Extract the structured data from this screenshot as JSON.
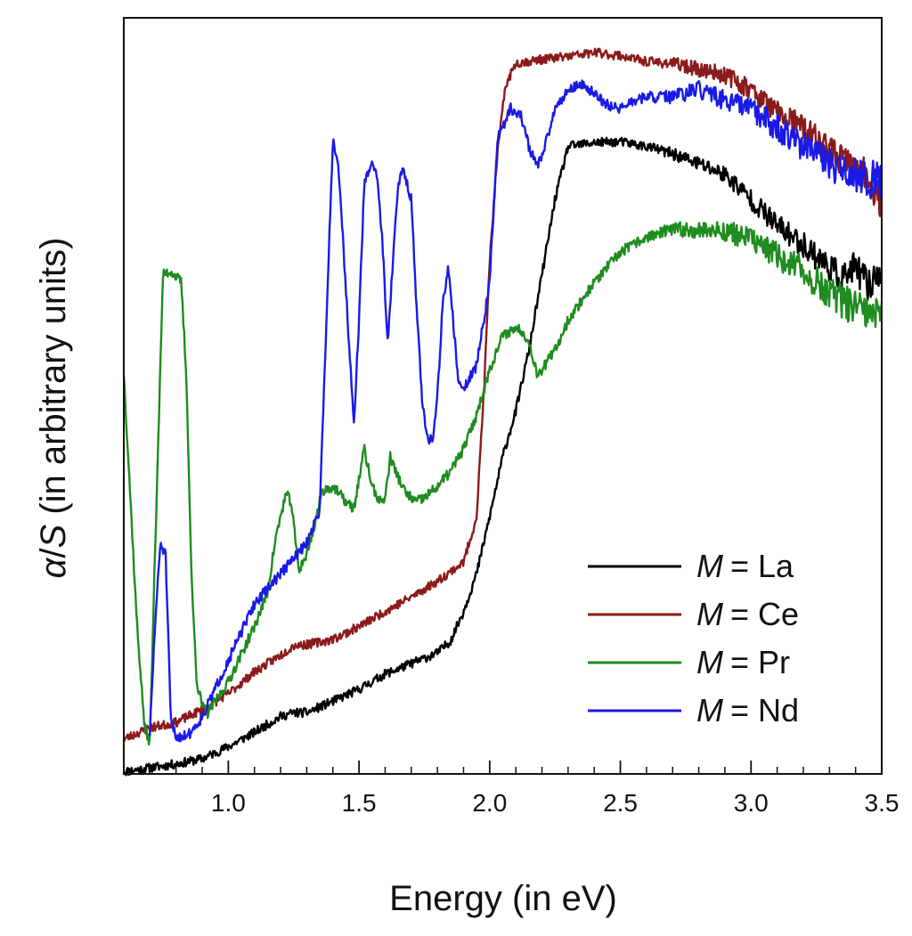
{
  "chart_data": {
    "type": "line",
    "title": "",
    "xlabel": "Energy (in eV)",
    "ylabel": {
      "alpha": "α",
      "slash": "/",
      "S": "S",
      "rest": " (in arbitrary units)"
    },
    "xlim": [
      0.6,
      3.5
    ],
    "ylim": [
      0,
      100
    ],
    "x_ticks": [
      1.0,
      1.5,
      2.0,
      2.5,
      3.0,
      3.5
    ],
    "x_tick_labels": [
      "1.0",
      "1.5",
      "2.0",
      "2.5",
      "3.0",
      "3.5"
    ],
    "x_minor_step": 0.1,
    "y_tick_labels": false,
    "grid": false,
    "legend_position": "lower-right",
    "legend_prefix": "M",
    "series": [
      {
        "name": "La",
        "label": "= La",
        "color": "#000000",
        "noise": 0.6,
        "seed": 11,
        "points": [
          [
            0.6,
            0.3
          ],
          [
            0.7,
            0.8
          ],
          [
            0.8,
            1.3
          ],
          [
            0.9,
            2
          ],
          [
            1.0,
            3.6
          ],
          [
            1.1,
            5.5
          ],
          [
            1.2,
            7.6
          ],
          [
            1.25,
            8.1
          ],
          [
            1.3,
            8.1
          ],
          [
            1.4,
            9.6
          ],
          [
            1.5,
            11.2
          ],
          [
            1.6,
            13.2
          ],
          [
            1.7,
            14.6
          ],
          [
            1.8,
            16
          ],
          [
            1.85,
            17.6
          ],
          [
            1.9,
            21.5
          ],
          [
            1.95,
            26.5
          ],
          [
            2.0,
            34
          ],
          [
            2.05,
            42
          ],
          [
            2.1,
            48
          ],
          [
            2.15,
            56
          ],
          [
            2.2,
            66
          ],
          [
            2.25,
            76
          ],
          [
            2.3,
            83
          ],
          [
            2.4,
            83.5
          ],
          [
            2.5,
            83.6
          ],
          [
            2.6,
            83
          ],
          [
            2.7,
            82
          ],
          [
            2.8,
            80.7
          ],
          [
            2.9,
            79.3
          ],
          [
            3.0,
            76
          ],
          [
            3.1,
            72.5
          ],
          [
            3.2,
            70
          ],
          [
            3.3,
            67
          ],
          [
            3.35,
            65.5
          ],
          [
            3.4,
            67
          ],
          [
            3.45,
            64.5
          ],
          [
            3.5,
            67
          ]
        ]
      },
      {
        "name": "Ce",
        "label": "= Ce",
        "color": "#8B1A1A",
        "noise": 0.6,
        "seed": 23,
        "points": [
          [
            0.6,
            4.6
          ],
          [
            0.7,
            6.1
          ],
          [
            0.8,
            6.8
          ],
          [
            0.9,
            8.5
          ],
          [
            1.0,
            10.6
          ],
          [
            1.1,
            13.5
          ],
          [
            1.2,
            15.7
          ],
          [
            1.25,
            17
          ],
          [
            1.3,
            17.1
          ],
          [
            1.4,
            17.8
          ],
          [
            1.5,
            19.5
          ],
          [
            1.6,
            21.5
          ],
          [
            1.7,
            23.4
          ],
          [
            1.8,
            25.5
          ],
          [
            1.9,
            28
          ],
          [
            1.95,
            34
          ],
          [
            1.98,
            52
          ],
          [
            2.0,
            68
          ],
          [
            2.03,
            82
          ],
          [
            2.06,
            91
          ],
          [
            2.1,
            94
          ],
          [
            2.2,
            94.5
          ],
          [
            2.3,
            94.9
          ],
          [
            2.4,
            95.4
          ],
          [
            2.5,
            95
          ],
          [
            2.6,
            94.2
          ],
          [
            2.7,
            94
          ],
          [
            2.8,
            93.2
          ],
          [
            2.9,
            92.5
          ],
          [
            3.0,
            90.5
          ],
          [
            3.1,
            87.5
          ],
          [
            3.2,
            85.5
          ],
          [
            3.3,
            82.5
          ],
          [
            3.4,
            80
          ],
          [
            3.45,
            79
          ],
          [
            3.5,
            75
          ]
        ]
      },
      {
        "name": "Pr",
        "label": "= Pr",
        "color": "#1E8C1E",
        "noise": 0.7,
        "seed": 37,
        "points": [
          [
            0.6,
            53
          ],
          [
            0.62,
            40
          ],
          [
            0.65,
            20
          ],
          [
            0.68,
            6
          ],
          [
            0.7,
            4.2
          ],
          [
            0.72,
            30
          ],
          [
            0.75,
            66
          ],
          [
            0.78,
            66.5
          ],
          [
            0.82,
            65
          ],
          [
            0.84,
            52
          ],
          [
            0.86,
            25
          ],
          [
            0.88,
            12
          ],
          [
            0.9,
            9
          ],
          [
            0.92,
            8
          ],
          [
            1.0,
            12.2
          ],
          [
            1.1,
            19.5
          ],
          [
            1.15,
            24
          ],
          [
            1.18,
            31
          ],
          [
            1.22,
            37
          ],
          [
            1.24,
            36
          ],
          [
            1.27,
            27
          ],
          [
            1.3,
            29
          ],
          [
            1.33,
            33
          ],
          [
            1.36,
            37.5
          ],
          [
            1.4,
            38
          ],
          [
            1.45,
            36
          ],
          [
            1.48,
            35
          ],
          [
            1.5,
            39
          ],
          [
            1.52,
            43
          ],
          [
            1.55,
            38
          ],
          [
            1.58,
            36
          ],
          [
            1.6,
            36.5
          ],
          [
            1.62,
            42
          ],
          [
            1.64,
            40
          ],
          [
            1.68,
            37
          ],
          [
            1.72,
            36
          ],
          [
            1.75,
            36.5
          ],
          [
            1.8,
            38
          ],
          [
            1.85,
            40
          ],
          [
            1.9,
            43
          ],
          [
            1.95,
            47.5
          ],
          [
            2.0,
            53.5
          ],
          [
            2.05,
            58
          ],
          [
            2.1,
            59
          ],
          [
            2.13,
            58.5
          ],
          [
            2.16,
            56
          ],
          [
            2.18,
            53
          ],
          [
            2.2,
            53.5
          ],
          [
            2.25,
            56
          ],
          [
            2.3,
            60
          ],
          [
            2.4,
            65
          ],
          [
            2.5,
            69
          ],
          [
            2.6,
            71
          ],
          [
            2.7,
            72
          ],
          [
            2.8,
            72
          ],
          [
            2.9,
            71.8
          ],
          [
            3.0,
            70.8
          ],
          [
            3.1,
            68.5
          ],
          [
            3.2,
            66.5
          ],
          [
            3.3,
            63.5
          ],
          [
            3.4,
            61.5
          ],
          [
            3.5,
            60
          ]
        ]
      },
      {
        "name": "Nd",
        "label": "= Nd",
        "color": "#1A1AE6",
        "noise": 0.7,
        "seed": 51,
        "points": [
          [
            0.7,
            5.5
          ],
          [
            0.72,
            20
          ],
          [
            0.74,
            30.5
          ],
          [
            0.76,
            29
          ],
          [
            0.77,
            18
          ],
          [
            0.78,
            7
          ],
          [
            0.8,
            4.8
          ],
          [
            0.85,
            5.3
          ],
          [
            0.9,
            7.5
          ],
          [
            1.0,
            15
          ],
          [
            1.1,
            22.5
          ],
          [
            1.2,
            26.5
          ],
          [
            1.3,
            30.5
          ],
          [
            1.35,
            35
          ],
          [
            1.37,
            55
          ],
          [
            1.4,
            84
          ],
          [
            1.42,
            81
          ],
          [
            1.44,
            70
          ],
          [
            1.46,
            58
          ],
          [
            1.48,
            46
          ],
          [
            1.5,
            60
          ],
          [
            1.52,
            78
          ],
          [
            1.55,
            81
          ],
          [
            1.57,
            79
          ],
          [
            1.59,
            70
          ],
          [
            1.61,
            57
          ],
          [
            1.63,
            68
          ],
          [
            1.65,
            78
          ],
          [
            1.67,
            80
          ],
          [
            1.7,
            76
          ],
          [
            1.72,
            62
          ],
          [
            1.74,
            50
          ],
          [
            1.76,
            44.5
          ],
          [
            1.78,
            44
          ],
          [
            1.8,
            50
          ],
          [
            1.82,
            62
          ],
          [
            1.84,
            67
          ],
          [
            1.86,
            60
          ],
          [
            1.88,
            52
          ],
          [
            1.9,
            51
          ],
          [
            1.95,
            54
          ],
          [
            2.0,
            65
          ],
          [
            2.03,
            84
          ],
          [
            2.08,
            88
          ],
          [
            2.12,
            87
          ],
          [
            2.15,
            83
          ],
          [
            2.18,
            80.5
          ],
          [
            2.2,
            81.5
          ],
          [
            2.25,
            88
          ],
          [
            2.3,
            90.5
          ],
          [
            2.35,
            91.2
          ],
          [
            2.4,
            90
          ],
          [
            2.45,
            88.5
          ],
          [
            2.5,
            88
          ],
          [
            2.55,
            89
          ],
          [
            2.6,
            89.5
          ],
          [
            2.7,
            89.5
          ],
          [
            2.8,
            90.5
          ],
          [
            2.9,
            89
          ],
          [
            3.0,
            88
          ],
          [
            3.1,
            85.5
          ],
          [
            3.2,
            83
          ],
          [
            3.3,
            80.5
          ],
          [
            3.4,
            79
          ],
          [
            3.45,
            78.5
          ],
          [
            3.5,
            79
          ]
        ]
      }
    ]
  }
}
